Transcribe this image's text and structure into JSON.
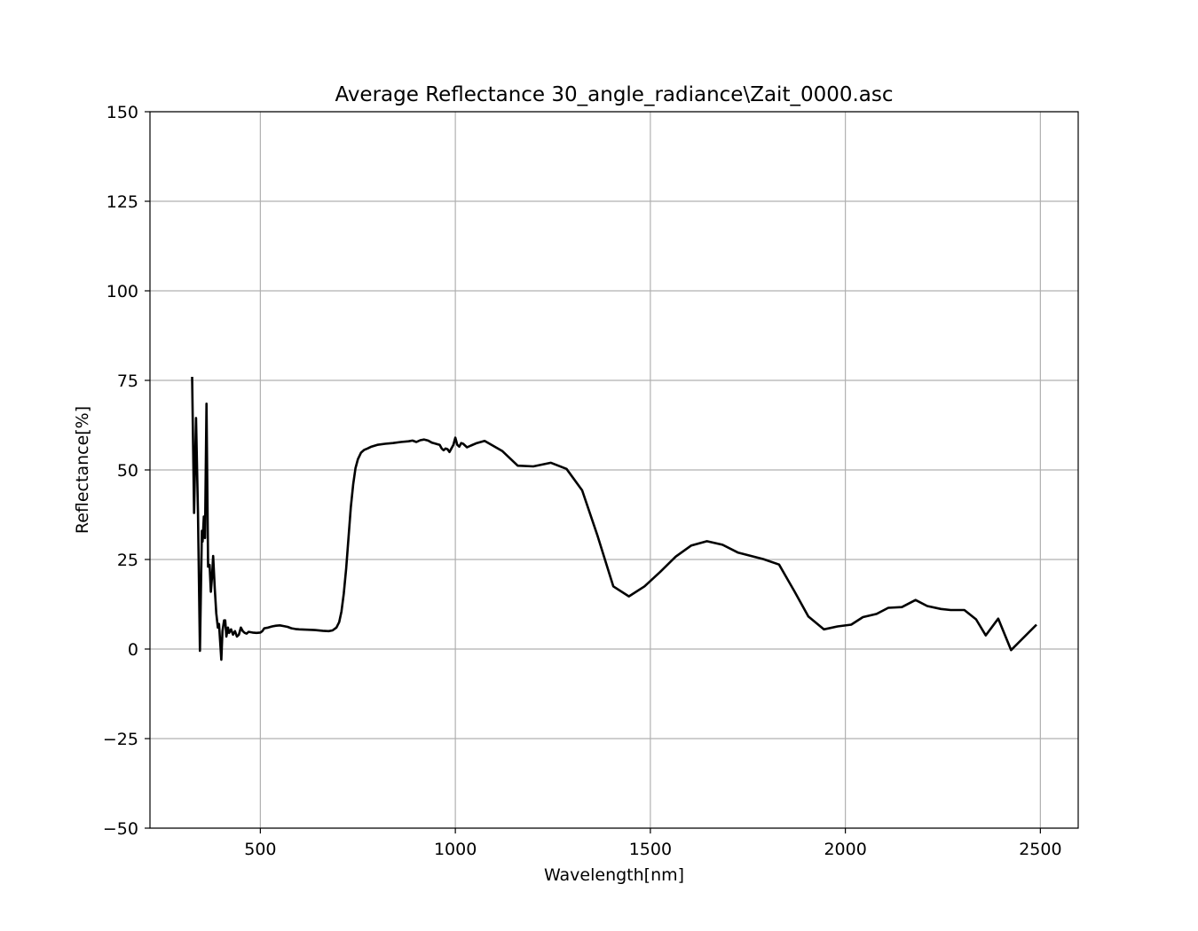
{
  "chart_data": {
    "type": "line",
    "title": "Average Reflectance 30_angle_radiance\\Zait_0000.asc",
    "xlabel": "Wavelength[nm]",
    "ylabel": "Reflectance[%]",
    "xlim": [
      217,
      2597
    ],
    "ylim": [
      -50,
      150
    ],
    "xticks": [
      500,
      1000,
      1500,
      2000,
      2500
    ],
    "yticks": [
      -50,
      -25,
      0,
      25,
      50,
      75,
      100,
      125,
      150
    ],
    "ytick_labels": [
      "−50",
      "−25",
      "0",
      "25",
      "50",
      "75",
      "100",
      "125",
      "150"
    ],
    "grid": true,
    "line_color": "#000000",
    "series": [
      {
        "points": [
          [
            325,
            76
          ],
          [
            330,
            38
          ],
          [
            335,
            64.5
          ],
          [
            340,
            38
          ],
          [
            345,
            -0.5
          ],
          [
            350,
            33
          ],
          [
            352,
            30
          ],
          [
            355,
            37
          ],
          [
            358,
            31
          ],
          [
            362,
            68.5
          ],
          [
            366,
            23
          ],
          [
            370,
            23.5
          ],
          [
            373,
            16
          ],
          [
            376,
            20
          ],
          [
            379,
            26
          ],
          [
            383,
            17
          ],
          [
            387,
            10
          ],
          [
            391,
            6
          ],
          [
            394,
            7
          ],
          [
            397,
            2
          ],
          [
            400,
            -3
          ],
          [
            403,
            5
          ],
          [
            407,
            8
          ],
          [
            410,
            8
          ],
          [
            413,
            3.5
          ],
          [
            417,
            6
          ],
          [
            420,
            4.5
          ],
          [
            425,
            5.5
          ],
          [
            430,
            4
          ],
          [
            435,
            5
          ],
          [
            440,
            3.5
          ],
          [
            445,
            4
          ],
          [
            450,
            6
          ],
          [
            455,
            5
          ],
          [
            460,
            4.5
          ],
          [
            465,
            4.3
          ],
          [
            470,
            4.8
          ],
          [
            480,
            4.6
          ],
          [
            490,
            4.5
          ],
          [
            500,
            4.6
          ],
          [
            505,
            5
          ],
          [
            510,
            5.8
          ],
          [
            520,
            6
          ],
          [
            530,
            6.3
          ],
          [
            540,
            6.5
          ],
          [
            550,
            6.6
          ],
          [
            560,
            6.4
          ],
          [
            570,
            6.2
          ],
          [
            580,
            5.8
          ],
          [
            590,
            5.6
          ],
          [
            600,
            5.5
          ],
          [
            620,
            5.4
          ],
          [
            640,
            5.3
          ],
          [
            660,
            5.1
          ],
          [
            675,
            5
          ],
          [
            685,
            5.2
          ],
          [
            695,
            6
          ],
          [
            702,
            7.5
          ],
          [
            708,
            10.5
          ],
          [
            714,
            15.5
          ],
          [
            720,
            22.5
          ],
          [
            726,
            31
          ],
          [
            732,
            39.5
          ],
          [
            738,
            46
          ],
          [
            744,
            50.5
          ],
          [
            750,
            53
          ],
          [
            758,
            54.8
          ],
          [
            766,
            55.6
          ],
          [
            775,
            56
          ],
          [
            785,
            56.5
          ],
          [
            800,
            57
          ],
          [
            820,
            57.3
          ],
          [
            840,
            57.5
          ],
          [
            860,
            57.8
          ],
          [
            880,
            58
          ],
          [
            890,
            58.2
          ],
          [
            900,
            57.8
          ],
          [
            910,
            58.3
          ],
          [
            920,
            58.5
          ],
          [
            930,
            58.2
          ],
          [
            940,
            57.6
          ],
          [
            950,
            57.3
          ],
          [
            960,
            57
          ],
          [
            965,
            56
          ],
          [
            970,
            55.5
          ],
          [
            975,
            56
          ],
          [
            980,
            55.8
          ],
          [
            985,
            55
          ],
          [
            990,
            56
          ],
          [
            995,
            57
          ],
          [
            1000,
            59
          ],
          [
            1005,
            57
          ],
          [
            1010,
            56.5
          ],
          [
            1015,
            57.5
          ],
          [
            1020,
            57.3
          ],
          [
            1030,
            56.3
          ],
          [
            1040,
            56.8
          ],
          [
            1055,
            57.5
          ],
          [
            1075,
            58.1
          ],
          [
            1120,
            55.3
          ],
          [
            1160,
            51.2
          ],
          [
            1200,
            51
          ],
          [
            1245,
            52
          ],
          [
            1285,
            50.3
          ],
          [
            1325,
            44.3
          ],
          [
            1365,
            31.5
          ],
          [
            1405,
            17.5
          ],
          [
            1445,
            14.7
          ],
          [
            1485,
            17.5
          ],
          [
            1525,
            21.5
          ],
          [
            1565,
            25.8
          ],
          [
            1605,
            28.9
          ],
          [
            1645,
            30.1
          ],
          [
            1685,
            29.1
          ],
          [
            1725,
            26.9
          ],
          [
            1790,
            25.1
          ],
          [
            1830,
            23.6
          ],
          [
            1870,
            16
          ],
          [
            1905,
            9.1
          ],
          [
            1945,
            5.5
          ],
          [
            1980,
            6.3
          ],
          [
            2015,
            6.8
          ],
          [
            2045,
            8.9
          ],
          [
            2080,
            9.8
          ],
          [
            2110,
            11.5
          ],
          [
            2145,
            11.7
          ],
          [
            2180,
            13.7
          ],
          [
            2210,
            12
          ],
          [
            2245,
            11.2
          ],
          [
            2270,
            10.9
          ],
          [
            2305,
            10.9
          ],
          [
            2335,
            8.3
          ],
          [
            2360,
            3.8
          ],
          [
            2392,
            8.5
          ],
          [
            2425,
            -0.3
          ],
          [
            2490,
            6.8
          ]
        ]
      }
    ]
  }
}
